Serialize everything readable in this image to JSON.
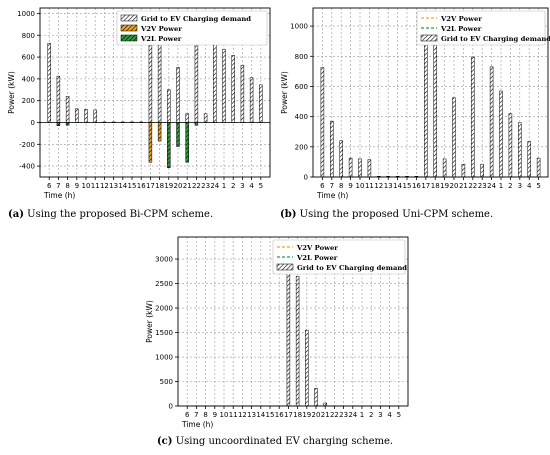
{
  "chart_data": [
    {
      "type": "bar",
      "panel": "a",
      "caption_letter": "(a)",
      "caption_text": "Using the proposed Bi-CPM scheme.",
      "xlabel": "Time (h)",
      "ylabel": "Power (kW)",
      "ylim": [
        -500,
        1050
      ],
      "yticks": [
        -400,
        -200,
        0,
        200,
        400,
        600,
        800,
        1000
      ],
      "grid": true,
      "legend_placement": "top-right",
      "categories": [
        "6",
        "7",
        "8",
        "9",
        "10",
        "11",
        "12",
        "13",
        "14",
        "15",
        "16",
        "17",
        "18",
        "19",
        "20",
        "21",
        "22",
        "23",
        "24",
        "1",
        "2",
        "3",
        "4",
        "5"
      ],
      "series": [
        {
          "name": "Grid to EV Charging demand",
          "style": "hatch",
          "color": "#ffffff",
          "values": [
            725,
            425,
            240,
            125,
            120,
            115,
            5,
            5,
            5,
            5,
            5,
            1000,
            930,
            300,
            505,
            80,
            730,
            80,
            740,
            670,
            615,
            525,
            410,
            345
          ]
        },
        {
          "name": "V2V Power",
          "style": "hatch",
          "color": "#f5a623",
          "values": [
            0,
            0,
            0,
            0,
            0,
            0,
            0,
            0,
            0,
            0,
            0,
            -365,
            -170,
            0,
            0,
            0,
            0,
            0,
            0,
            0,
            0,
            0,
            0,
            0
          ]
        },
        {
          "name": "V2L Power",
          "style": "hatch",
          "color": "#2f9a3a",
          "values": [
            0,
            -30,
            -25,
            0,
            0,
            0,
            0,
            0,
            0,
            0,
            0,
            0,
            0,
            -415,
            -220,
            -365,
            -25,
            0,
            0,
            0,
            0,
            0,
            0,
            0
          ]
        }
      ]
    },
    {
      "type": "bar",
      "panel": "b",
      "caption_letter": "(b)",
      "caption_text": "Using the proposed Uni-CPM scheme.",
      "xlabel": "Time (h)",
      "ylabel": "Power (kW)",
      "ylim": [
        0,
        1120
      ],
      "yticks": [
        0,
        200,
        400,
        600,
        800,
        1000
      ],
      "grid": true,
      "legend_placement": "top-right",
      "categories": [
        "6",
        "7",
        "8",
        "9",
        "10",
        "11",
        "12",
        "13",
        "14",
        "15",
        "16",
        "17",
        "18",
        "19",
        "20",
        "21",
        "22",
        "23",
        "24",
        "1",
        "2",
        "3",
        "4",
        "5"
      ],
      "series": [
        {
          "name": "V2V Power",
          "style": "line",
          "color": "#f5a623",
          "values": [
            0,
            0,
            0,
            0,
            0,
            0,
            0,
            0,
            0,
            0,
            0,
            0,
            0,
            0,
            0,
            0,
            0,
            0,
            0,
            0,
            0,
            0,
            0,
            0
          ]
        },
        {
          "name": "V2L Power",
          "style": "line",
          "color": "#2f9a3a",
          "values": [
            0,
            0,
            0,
            0,
            0,
            0,
            0,
            0,
            0,
            0,
            0,
            0,
            0,
            0,
            0,
            0,
            0,
            0,
            0,
            0,
            0,
            0,
            0,
            0
          ]
        },
        {
          "name": "Grid to EV Charging demand",
          "style": "hatch",
          "color": "#ffffff",
          "values": [
            725,
            370,
            240,
            125,
            120,
            115,
            5,
            5,
            5,
            5,
            5,
            1070,
            975,
            120,
            525,
            85,
            795,
            85,
            730,
            570,
            420,
            360,
            235,
            125
          ]
        }
      ]
    },
    {
      "type": "bar",
      "panel": "c",
      "caption_letter": "(c)",
      "caption_text": "Using uncoordinated EV charging scheme.",
      "xlabel": "Time (h)",
      "ylabel": "Power (kW)",
      "ylim": [
        0,
        3450
      ],
      "yticks": [
        0,
        500,
        1000,
        1500,
        2000,
        2500,
        3000
      ],
      "grid": true,
      "legend_placement": "top-right",
      "categories": [
        "6",
        "7",
        "8",
        "9",
        "10",
        "11",
        "12",
        "13",
        "14",
        "15",
        "16",
        "17",
        "18",
        "19",
        "20",
        "21",
        "22",
        "23",
        "24",
        "1",
        "2",
        "3",
        "4",
        "5"
      ],
      "series": [
        {
          "name": "V2V Power",
          "style": "line",
          "color": "#f5a623",
          "values": [
            0,
            0,
            0,
            0,
            0,
            0,
            0,
            0,
            0,
            0,
            0,
            0,
            0,
            0,
            0,
            0,
            0,
            0,
            0,
            0,
            0,
            0,
            0,
            0
          ]
        },
        {
          "name": "V2L Power",
          "style": "line",
          "color": "#2f9a3a",
          "values": [
            0,
            0,
            0,
            0,
            0,
            0,
            0,
            0,
            0,
            0,
            0,
            0,
            0,
            0,
            0,
            0,
            0,
            0,
            0,
            0,
            0,
            0,
            0,
            0
          ]
        },
        {
          "name": "Grid to EV Charging demand",
          "style": "hatch",
          "color": "#ffffff",
          "values": [
            0,
            0,
            0,
            0,
            0,
            0,
            0,
            0,
            0,
            0,
            0,
            3300,
            2650,
            1550,
            360,
            60,
            0,
            0,
            0,
            0,
            0,
            0,
            0,
            0
          ]
        }
      ]
    }
  ]
}
